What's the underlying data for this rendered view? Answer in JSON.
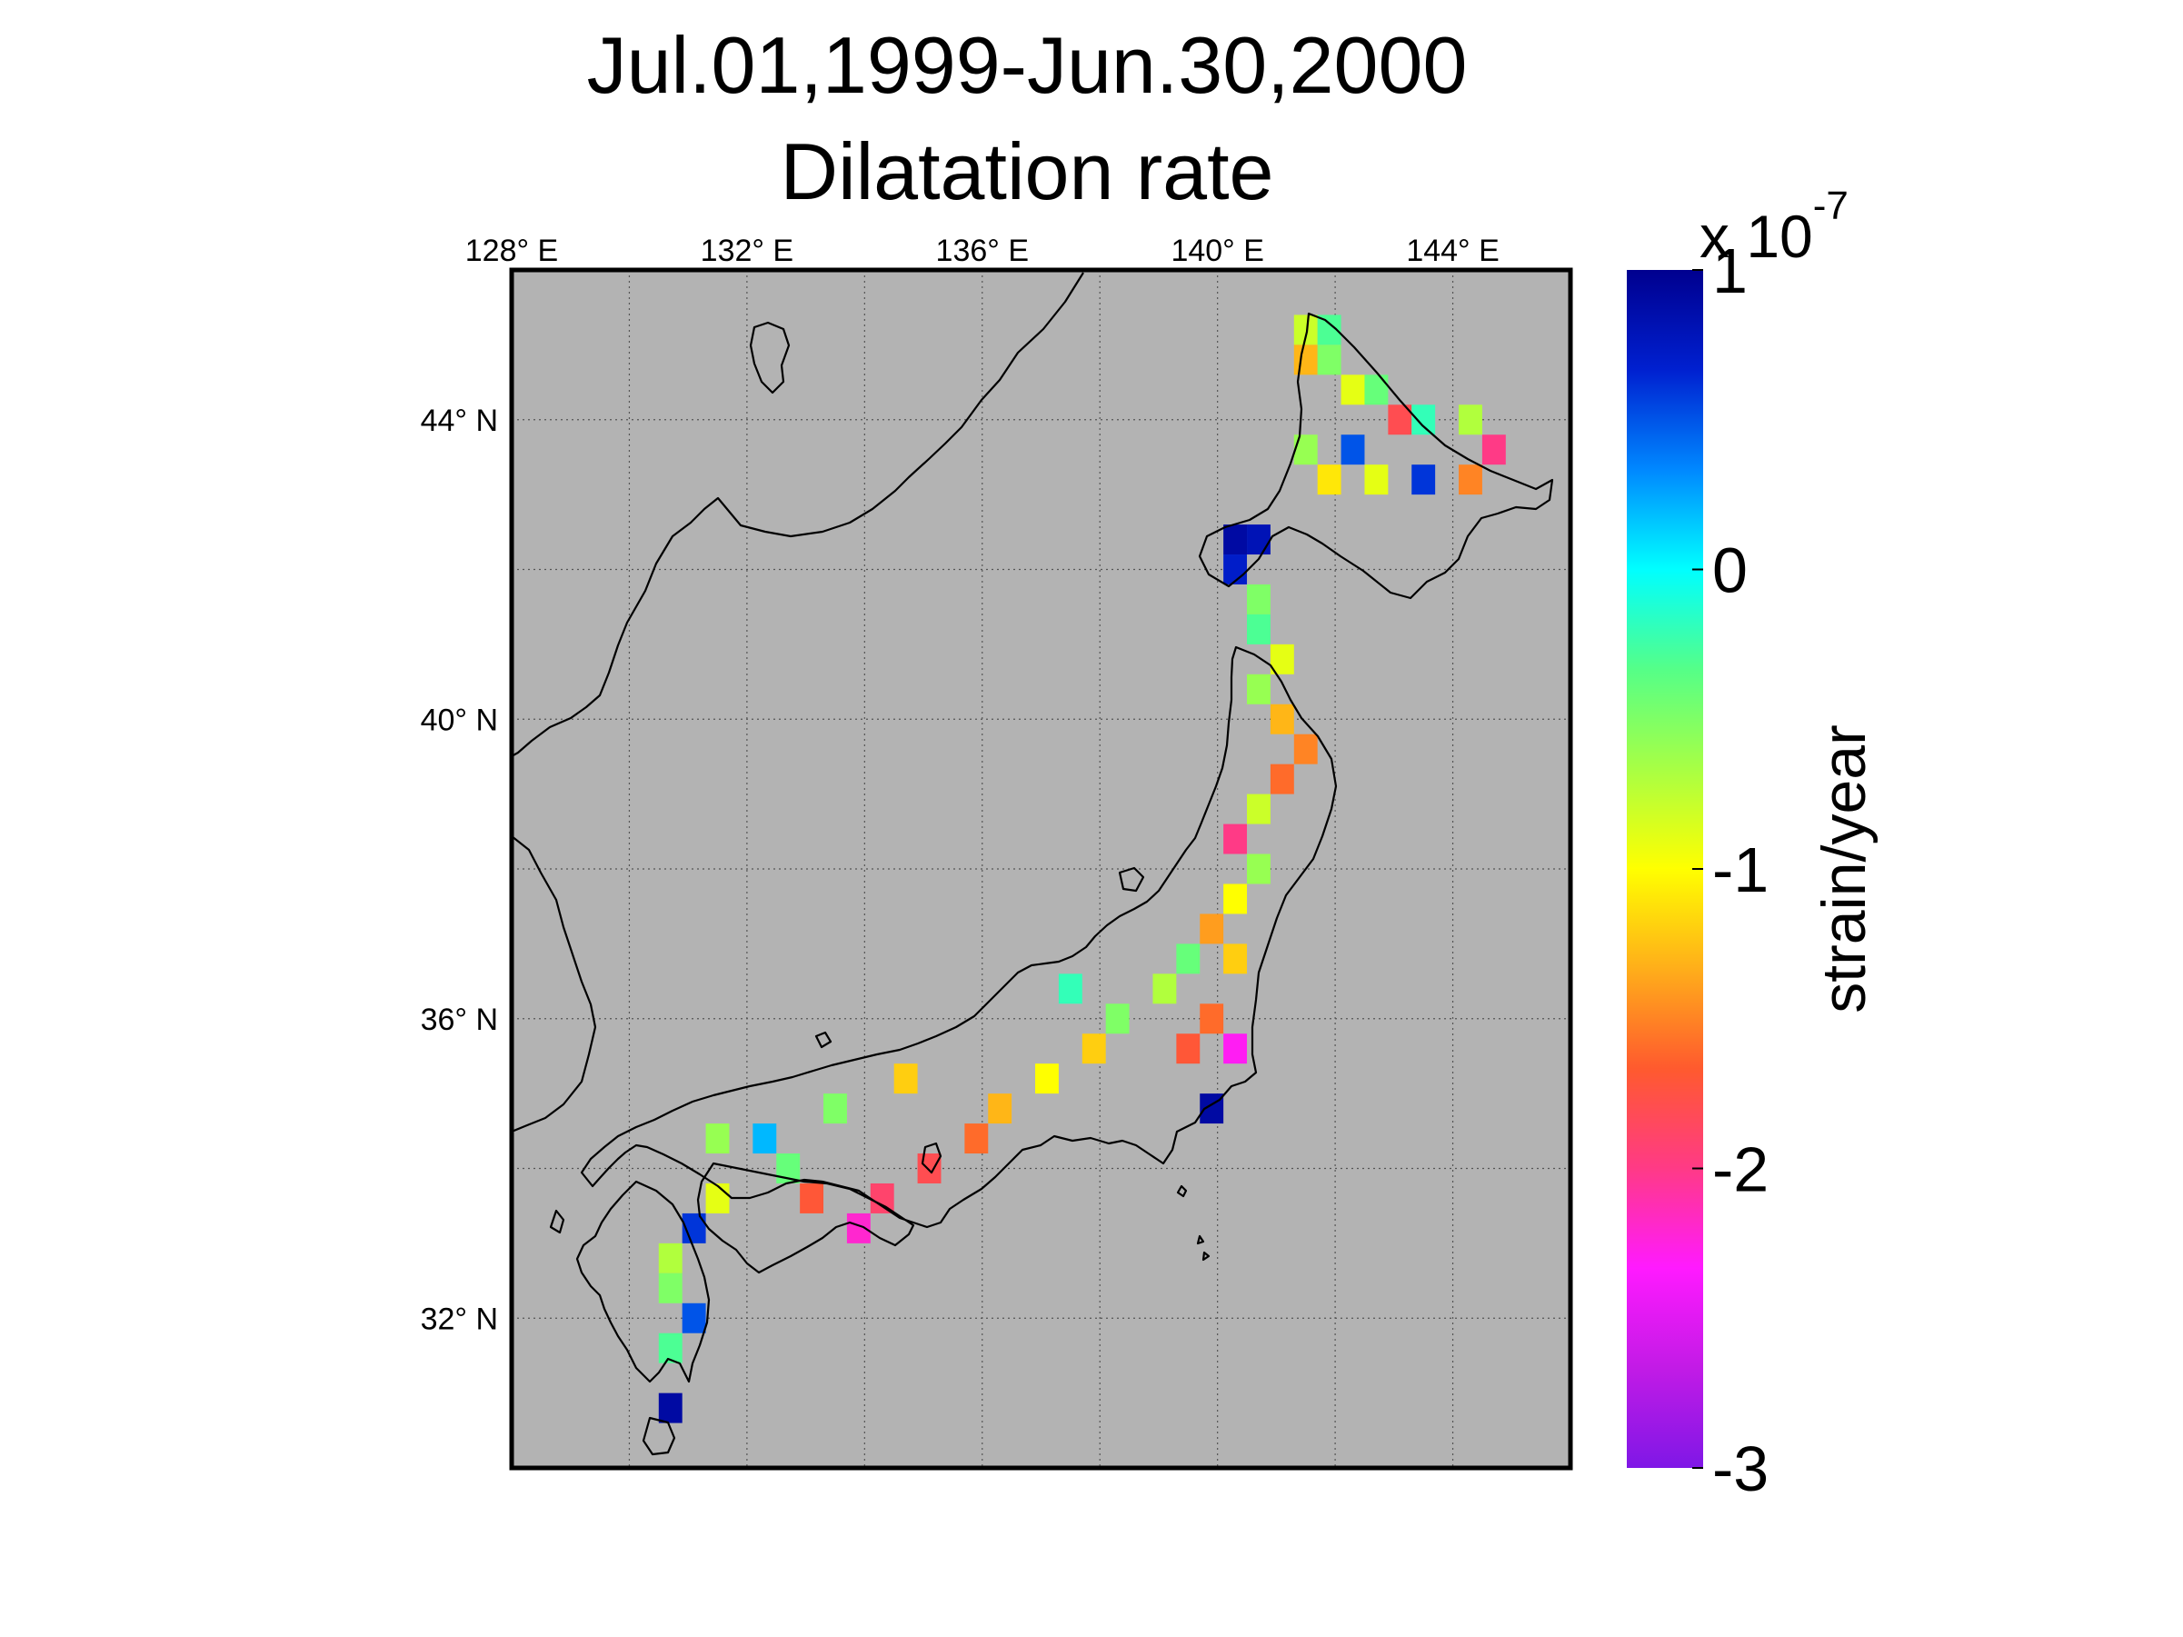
{
  "title": {
    "line1": "Jul.01,1999-Jun.30,2000",
    "line2": "Dilatation rate"
  },
  "map": {
    "background_color": "#b3b3b3",
    "coast_color": "#000000",
    "grid": true,
    "lon_ticks": [
      {
        "value": 128,
        "label": "128° E"
      },
      {
        "value": 132,
        "label": "132° E"
      },
      {
        "value": 136,
        "label": "136° E"
      },
      {
        "value": 140,
        "label": "140° E"
      },
      {
        "value": 144,
        "label": "144° E"
      }
    ],
    "lat_ticks": [
      {
        "value": 44,
        "label": "44° N"
      },
      {
        "value": 40,
        "label": "40° N"
      },
      {
        "value": 36,
        "label": "36° N"
      },
      {
        "value": 32,
        "label": "32° N"
      }
    ],
    "lon_range": [
      128,
      146
    ],
    "lat_range": [
      30,
      46
    ]
  },
  "colorbar": {
    "min": -3,
    "max": 1,
    "ticks": [
      {
        "value": 1,
        "label": "1"
      },
      {
        "value": 0,
        "label": "0"
      },
      {
        "value": -1,
        "label": "-1"
      },
      {
        "value": -2,
        "label": "-2"
      },
      {
        "value": -3,
        "label": "-3"
      }
    ],
    "multiplier_base": "x 10",
    "multiplier_exponent": "-7",
    "label": "strain/year",
    "colors": [
      "#7f17e6",
      "#c21be6",
      "#ff1aff",
      "#ff3a86",
      "#ff5a2e",
      "#ffae1a",
      "#ffff00",
      "#a8ff44",
      "#55ff88",
      "#00ffff",
      "#0088ff",
      "#0020d0",
      "#00008f"
    ]
  },
  "chart_data": {
    "type": "heatmap",
    "title": "Jul.01,1999-Jun.30,2000 Dilatation rate",
    "xlabel": "",
    "ylabel": "",
    "xlim": [
      128,
      146
    ],
    "ylim": [
      30,
      46
    ],
    "colorbar_range": [
      -3,
      1
    ],
    "colorbar_units": "strain/year",
    "colorbar_scale": "x 10^-7",
    "cell_size_deg": 0.4,
    "cells": [
      [
        141.5,
        45.2,
        -0.8
      ],
      [
        141.9,
        45.2,
        -0.3
      ],
      [
        141.5,
        44.8,
        -1.3
      ],
      [
        141.9,
        44.8,
        -0.5
      ],
      [
        142.3,
        44.4,
        -0.9
      ],
      [
        142.7,
        44.4,
        -0.4
      ],
      [
        143.1,
        44.0,
        -1.8
      ],
      [
        143.5,
        44.0,
        -0.2
      ],
      [
        144.3,
        44.0,
        -0.7
      ],
      [
        144.7,
        43.6,
        -2.0
      ],
      [
        142.3,
        43.6,
        0.5
      ],
      [
        141.5,
        43.6,
        -0.6
      ],
      [
        141.9,
        43.2,
        -1.1
      ],
      [
        142.7,
        43.2,
        -0.9
      ],
      [
        143.5,
        43.2,
        0.6
      ],
      [
        144.3,
        43.2,
        -1.5
      ],
      [
        140.3,
        42.4,
        0.9
      ],
      [
        140.7,
        42.4,
        0.8
      ],
      [
        140.3,
        42.0,
        0.7
      ],
      [
        140.7,
        41.6,
        -0.5
      ],
      [
        140.7,
        41.2,
        -0.3
      ],
      [
        141.1,
        40.8,
        -0.9
      ],
      [
        140.7,
        40.4,
        -0.6
      ],
      [
        141.1,
        40.0,
        -1.3
      ],
      [
        141.5,
        39.6,
        -1.5
      ],
      [
        141.1,
        39.2,
        -1.6
      ],
      [
        140.7,
        38.8,
        -0.8
      ],
      [
        140.3,
        38.4,
        -2.0
      ],
      [
        140.7,
        38.0,
        -0.6
      ],
      [
        140.3,
        37.6,
        -1.0
      ],
      [
        139.9,
        37.2,
        -1.4
      ],
      [
        139.5,
        36.8,
        -0.4
      ],
      [
        140.3,
        36.8,
        -1.2
      ],
      [
        139.1,
        36.4,
        -0.7
      ],
      [
        139.9,
        36.0,
        -1.6
      ],
      [
        140.3,
        35.6,
        -2.3
      ],
      [
        139.5,
        35.6,
        -1.7
      ],
      [
        139.9,
        34.8,
        0.9
      ],
      [
        138.3,
        36.0,
        -0.5
      ],
      [
        137.5,
        36.4,
        -0.2
      ],
      [
        137.9,
        35.6,
        -1.2
      ],
      [
        137.1,
        35.2,
        -1.0
      ],
      [
        136.3,
        34.8,
        -1.3
      ],
      [
        135.9,
        34.4,
        -1.6
      ],
      [
        135.1,
        34.0,
        -1.8
      ],
      [
        134.3,
        33.6,
        -1.9
      ],
      [
        133.9,
        33.2,
        -2.2
      ],
      [
        133.1,
        33.6,
        -1.7
      ],
      [
        132.7,
        34.0,
        -0.4
      ],
      [
        132.3,
        34.4,
        0.2
      ],
      [
        131.5,
        33.6,
        -0.9
      ],
      [
        131.1,
        33.2,
        0.6
      ],
      [
        130.7,
        32.8,
        -0.7
      ],
      [
        130.7,
        32.4,
        -0.5
      ],
      [
        131.1,
        32.0,
        0.5
      ],
      [
        130.7,
        31.6,
        -0.3
      ],
      [
        130.7,
        30.8,
        0.9
      ],
      [
        131.5,
        34.4,
        -0.6
      ],
      [
        133.5,
        34.8,
        -0.5
      ],
      [
        134.7,
        35.2,
        -1.2
      ]
    ]
  }
}
